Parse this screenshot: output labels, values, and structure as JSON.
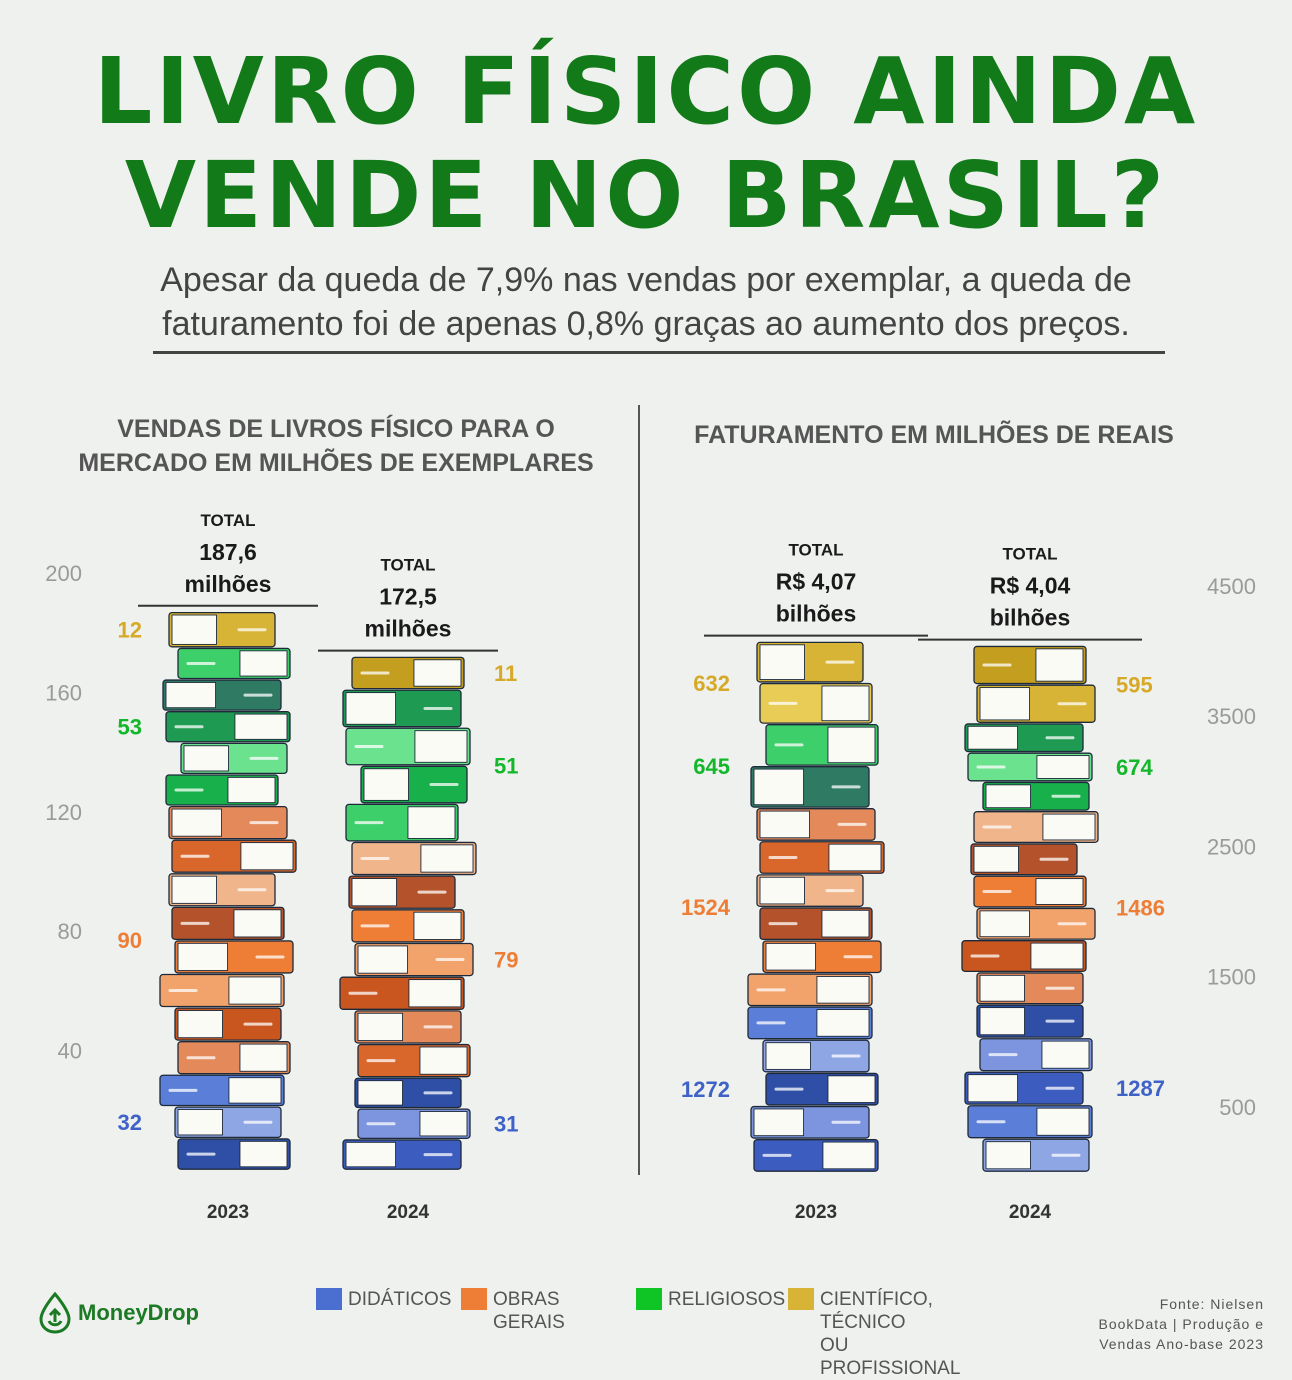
{
  "title_line1": "LIVRO FÍSICO AINDA",
  "title_line2": "VENDE NO BRASIL?",
  "subtitle_line1": "Apesar da queda de 7,9% nas vendas por exemplar, a queda de",
  "subtitle_line2": "faturamento foi de apenas 0,8% graças ao aumento dos preços.",
  "colors": {
    "didaticos": "#4a6fd0",
    "obras_gerais": "#ee7d35",
    "religiosos": "#0fc425",
    "cientifico": "#d8b436",
    "title_green": "#137a1a"
  },
  "legend": {
    "didaticos": "DIDÁTICOS",
    "obras_gerais": "OBRAS GERAIS",
    "religiosos": "RELIGIOSOS",
    "cientifico_1": "CIENTÍFICO, TÉCNICO",
    "cientifico_2": "OU PROFISSIONAL"
  },
  "brand": "MoneyDrop",
  "source": {
    "line1": "Fonte: Nielsen",
    "line2": "BookData | Produção e",
    "line3": "Vendas Ano-base 2023"
  },
  "chart_data": [
    {
      "type": "bar",
      "stacked": true,
      "title_line1": "VENDAS DE LIVROS FÍSICO PARA O",
      "title_line2": "MERCADO EM MILHÕES DE EXEMPLARES",
      "categories": [
        "2023",
        "2024"
      ],
      "series": [
        {
          "name": "DIDÁTICOS",
          "values": [
            32,
            31
          ]
        },
        {
          "name": "OBRAS GERAIS",
          "values": [
            90,
            79
          ]
        },
        {
          "name": "RELIGIOSOS",
          "values": [
            53,
            51
          ]
        },
        {
          "name": "CIENTÍFICO, TÉCNICO OU PROFISSIONAL",
          "values": [
            12,
            11
          ]
        }
      ],
      "ticks": [
        "40",
        "80",
        "120",
        "160",
        "200"
      ],
      "ylim": [
        0,
        200
      ],
      "axis_side": "left",
      "totals": [
        {
          "label": "TOTAL",
          "value": "187,6",
          "unit": "milhões"
        },
        {
          "label": "TOTAL",
          "value": "172,5",
          "unit": "milhões"
        }
      ]
    },
    {
      "type": "bar",
      "stacked": true,
      "title_line1": "FATURAMENTO EM MILHÕES DE  REAIS",
      "categories": [
        "2023",
        "2024"
      ],
      "series": [
        {
          "name": "DIDÁTICOS",
          "values": [
            1272,
            1287
          ]
        },
        {
          "name": "OBRAS GERAIS",
          "values": [
            1524,
            1486
          ]
        },
        {
          "name": "RELIGIOSOS",
          "values": [
            645,
            674
          ]
        },
        {
          "name": "CIENTÍFICO, TÉCNICO OU PROFISSIONAL",
          "values": [
            632,
            595
          ]
        }
      ],
      "ticks": [
        "500",
        "1500",
        "2500",
        "3500",
        "4500"
      ],
      "ylim": [
        0,
        4500
      ],
      "axis_side": "right",
      "totals": [
        {
          "label": "TOTAL",
          "value": "R$ 4,07",
          "unit": "bilhões"
        },
        {
          "label": "TOTAL",
          "value": "R$ 4,04",
          "unit": "bilhões"
        }
      ]
    }
  ]
}
